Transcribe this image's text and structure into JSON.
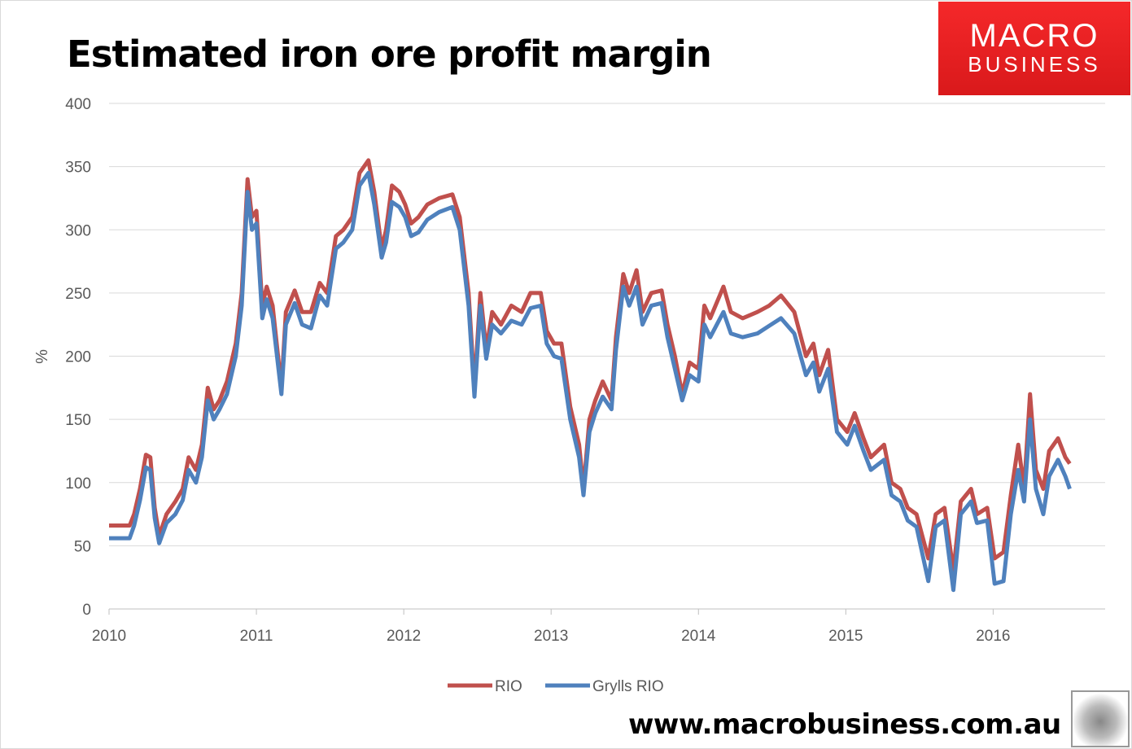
{
  "logo": {
    "line1": "MACRO",
    "line2": "BUSINESS"
  },
  "footer": {
    "url": "www.macrobusiness.com.au"
  },
  "chart_data": {
    "type": "line",
    "title": "Estimated iron ore profit margin",
    "xlabel": "",
    "ylabel": "%",
    "ylim": [
      0,
      400
    ],
    "xlim": [
      2010,
      2016.76
    ],
    "yticks": [
      0,
      50,
      100,
      150,
      200,
      250,
      300,
      350,
      400
    ],
    "xticks": [
      2010,
      2011,
      2012,
      2013,
      2014,
      2015,
      2016
    ],
    "grid": true,
    "legend": "bottom",
    "colors": {
      "RIO": "#c0504d",
      "Grylls RIO": "#4f81bd"
    },
    "series": [
      {
        "name": "RIO",
        "x": [
          2010,
          2010.14,
          2010.17,
          2010.21,
          2010.25,
          2010.28,
          2010.31,
          2010.34,
          2010.39,
          2010.45,
          2010.5,
          2010.54,
          2010.59,
          2010.63,
          2010.67,
          2010.71,
          2010.75,
          2010.8,
          2010.86,
          2010.9,
          2010.94,
          2010.97,
          2011.0,
          2011.04,
          2011.07,
          2011.11,
          2011.17,
          2011.2,
          2011.26,
          2011.31,
          2011.37,
          2011.43,
          2011.48,
          2011.54,
          2011.59,
          2011.65,
          2011.7,
          2011.76,
          2011.8,
          2011.85,
          2011.88,
          2011.92,
          2011.97,
          2012.01,
          2012.05,
          2012.1,
          2012.16,
          2012.24,
          2012.33,
          2012.38,
          2012.44,
          2012.48,
          2012.52,
          2012.56,
          2012.6,
          2012.66,
          2012.73,
          2012.8,
          2012.86,
          2012.93,
          2012.97,
          2013.02,
          2013.07,
          2013.13,
          2013.19,
          2013.22,
          2013.26,
          2013.3,
          2013.35,
          2013.41,
          2013.44,
          2013.49,
          2013.53,
          2013.58,
          2013.62,
          2013.68,
          2013.75,
          2013.79,
          2013.84,
          2013.89,
          2013.94,
          2014.0,
          2014.04,
          2014.08,
          2014.17,
          2014.22,
          2014.3,
          2014.4,
          2014.48,
          2014.56,
          2014.65,
          2014.73,
          2014.78,
          2014.82,
          2014.88,
          2014.94,
          2015.01,
          2015.06,
          2015.12,
          2015.17,
          2015.26,
          2015.31,
          2015.37,
          2015.42,
          2015.48,
          2015.56,
          2015.61,
          2015.67,
          2015.73,
          2015.78,
          2015.85,
          2015.89,
          2015.96,
          2016.01,
          2016.07,
          2016.12,
          2016.17,
          2016.21,
          2016.25,
          2016.29,
          2016.34,
          2016.38,
          2016.44,
          2016.49,
          2016.52
        ],
        "values": [
          66,
          66,
          75,
          95,
          122,
          120,
          80,
          58,
          75,
          85,
          95,
          120,
          110,
          130,
          175,
          158,
          165,
          180,
          210,
          250,
          340,
          310,
          315,
          240,
          255,
          240,
          175,
          235,
          252,
          235,
          235,
          258,
          250,
          295,
          300,
          310,
          345,
          355,
          330,
          285,
          300,
          335,
          330,
          320,
          305,
          310,
          320,
          325,
          328,
          310,
          250,
          175,
          250,
          205,
          235,
          225,
          240,
          235,
          250,
          250,
          220,
          210,
          210,
          160,
          130,
          95,
          150,
          165,
          180,
          165,
          215,
          265,
          250,
          268,
          235,
          250,
          252,
          225,
          200,
          170,
          195,
          190,
          240,
          230,
          255,
          235,
          230,
          235,
          240,
          248,
          235,
          200,
          210,
          185,
          205,
          150,
          140,
          155,
          135,
          120,
          130,
          100,
          95,
          80,
          75,
          40,
          75,
          80,
          30,
          85,
          95,
          75,
          80,
          40,
          45,
          90,
          130,
          95,
          170,
          110,
          95,
          125,
          135,
          120,
          115
        ]
      },
      {
        "name": "Grylls RIO",
        "x": [
          2010,
          2010.14,
          2010.17,
          2010.21,
          2010.25,
          2010.28,
          2010.31,
          2010.34,
          2010.39,
          2010.45,
          2010.5,
          2010.54,
          2010.59,
          2010.63,
          2010.67,
          2010.71,
          2010.75,
          2010.8,
          2010.86,
          2010.9,
          2010.94,
          2010.97,
          2011.0,
          2011.04,
          2011.07,
          2011.11,
          2011.17,
          2011.2,
          2011.26,
          2011.31,
          2011.37,
          2011.43,
          2011.48,
          2011.54,
          2011.59,
          2011.65,
          2011.7,
          2011.76,
          2011.8,
          2011.85,
          2011.88,
          2011.92,
          2011.97,
          2012.01,
          2012.05,
          2012.1,
          2012.16,
          2012.24,
          2012.33,
          2012.38,
          2012.44,
          2012.48,
          2012.52,
          2012.56,
          2012.6,
          2012.66,
          2012.73,
          2012.8,
          2012.86,
          2012.93,
          2012.97,
          2013.02,
          2013.07,
          2013.13,
          2013.19,
          2013.22,
          2013.26,
          2013.3,
          2013.35,
          2013.41,
          2013.44,
          2013.49,
          2013.53,
          2013.58,
          2013.62,
          2013.68,
          2013.75,
          2013.79,
          2013.84,
          2013.89,
          2013.94,
          2014.0,
          2014.04,
          2014.08,
          2014.17,
          2014.22,
          2014.3,
          2014.4,
          2014.48,
          2014.56,
          2014.65,
          2014.73,
          2014.78,
          2014.82,
          2014.88,
          2014.94,
          2015.01,
          2015.06,
          2015.12,
          2015.17,
          2015.26,
          2015.31,
          2015.37,
          2015.42,
          2015.48,
          2015.56,
          2015.61,
          2015.67,
          2015.73,
          2015.78,
          2015.85,
          2015.89,
          2015.96,
          2016.01,
          2016.07,
          2016.12,
          2016.17,
          2016.21,
          2016.25,
          2016.29,
          2016.34,
          2016.38,
          2016.44,
          2016.49,
          2016.52
        ],
        "values": [
          56,
          56,
          66,
          86,
          112,
          110,
          72,
          52,
          68,
          75,
          86,
          110,
          100,
          120,
          165,
          150,
          158,
          170,
          200,
          240,
          330,
          300,
          305,
          230,
          245,
          230,
          170,
          225,
          242,
          225,
          222,
          248,
          240,
          285,
          290,
          300,
          335,
          345,
          320,
          278,
          290,
          322,
          318,
          310,
          295,
          298,
          308,
          314,
          318,
          300,
          240,
          168,
          240,
          198,
          225,
          218,
          228,
          225,
          238,
          240,
          210,
          200,
          198,
          150,
          120,
          90,
          140,
          155,
          168,
          158,
          205,
          255,
          240,
          255,
          225,
          240,
          242,
          215,
          190,
          165,
          185,
          180,
          225,
          215,
          235,
          218,
          215,
          218,
          224,
          230,
          218,
          185,
          195,
          172,
          190,
          140,
          130,
          145,
          125,
          110,
          118,
          90,
          85,
          70,
          65,
          22,
          65,
          70,
          15,
          75,
          85,
          68,
          70,
          20,
          22,
          75,
          110,
          85,
          150,
          95,
          75,
          105,
          118,
          105,
          95
        ]
      }
    ]
  }
}
